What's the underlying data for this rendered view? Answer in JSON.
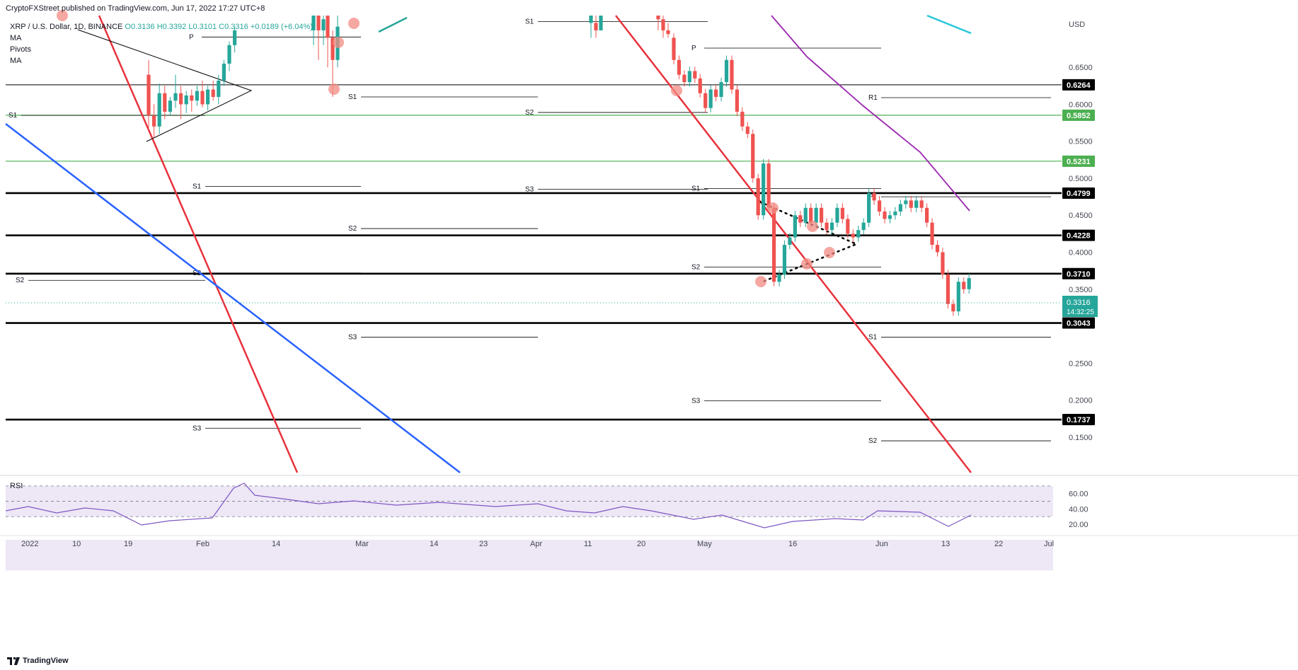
{
  "header": {
    "publisher": "CryptoFXStreet published on TradingView.com, Jun 17, 2022 17:27 UTC+8"
  },
  "legend": {
    "symbol": "XRP / U.S. Dollar, 1D, BINANCE",
    "open": "O0.3136",
    "high": "H0.3392",
    "low": "L0.3101",
    "close": "C0.3316",
    "change": "+0.0189 (+6.04%)",
    "studies": [
      "MA",
      "Pivots",
      "MA"
    ]
  },
  "footer": {
    "brand": "TradingView"
  },
  "colors": {
    "bull": "#26a69a",
    "bear": "#ef5350",
    "red_trend": "#e8323c",
    "blue_trend": "#2962ff",
    "purple_ma": "#9c27b0",
    "teal_ma": "#26c6da",
    "support_green": "#4caf50",
    "rsi_line": "#7e57c2",
    "rsi_band": "#ede7f6",
    "circle_marker": "#f28b82"
  },
  "chart_data": {
    "type": "candlestick",
    "symbol": "XRP / U.S. Dollar",
    "interval": "1D",
    "exchange": "BINANCE",
    "currency_label": "USD",
    "y_range": [
      0.102,
      0.72
    ],
    "y_ticks": [
      "0.6500",
      "0.6000",
      "0.5500",
      "0.5000",
      "0.4500",
      "0.4000",
      "0.3500",
      "0.2500",
      "0.2000",
      "0.1500"
    ],
    "x_ticks": [
      "2022",
      "10",
      "19",
      "Feb",
      "14",
      "Mar",
      "14",
      "23",
      "Apr",
      "11",
      "20",
      "May",
      "16",
      "Jun",
      "13",
      "22",
      "Jul"
    ],
    "last_price": {
      "value": 0.3316,
      "label": "0.3316",
      "countdown": "14:32:25"
    },
    "horizontal_levels": [
      {
        "value": 0.6264,
        "label": "0.6264",
        "style": "black-thin"
      },
      {
        "value": 0.5852,
        "label": "0.5852",
        "style": "green"
      },
      {
        "value": 0.5231,
        "label": "0.5231",
        "style": "green"
      },
      {
        "value": 0.4799,
        "label": "0.4799",
        "style": "black-bold"
      },
      {
        "value": 0.4228,
        "label": "0.4228",
        "style": "black-bold"
      },
      {
        "value": 0.371,
        "label": "0.3710",
        "style": "black-bold"
      },
      {
        "value": 0.3043,
        "label": "0.3043",
        "style": "black-bold"
      },
      {
        "value": 0.1737,
        "label": "0.1737",
        "style": "black-bold"
      }
    ],
    "pivot_labels": [
      {
        "label": "S1",
        "value": 0.585
      },
      {
        "label": "S2",
        "value": 0.362
      },
      {
        "label": "P",
        "value": 0.691
      },
      {
        "label": "S1",
        "value": 0.489
      },
      {
        "label": "S2",
        "value": 0.372
      },
      {
        "label": "S3",
        "value": 0.162
      },
      {
        "label": "S1",
        "value": 0.61
      },
      {
        "label": "S2",
        "value": 0.432
      },
      {
        "label": "S3",
        "value": 0.285
      },
      {
        "label": "S1",
        "value": 0.712
      },
      {
        "label": "S2",
        "value": 0.589
      },
      {
        "label": "S3",
        "value": 0.485
      },
      {
        "label": "P",
        "value": 0.676
      },
      {
        "label": "S1",
        "value": 0.486
      },
      {
        "label": "S2",
        "value": 0.38
      },
      {
        "label": "S3",
        "value": 0.199
      },
      {
        "label": "R1",
        "value": 0.609
      },
      {
        "label": "P",
        "value": 0.475
      },
      {
        "label": "S1",
        "value": 0.285
      },
      {
        "label": "S2",
        "value": 0.145
      }
    ],
    "candles": [
      {
        "o": 0.64,
        "h": 0.66,
        "l": 0.565,
        "c": 0.585
      },
      {
        "o": 0.585,
        "h": 0.6,
        "l": 0.555,
        "c": 0.57
      },
      {
        "o": 0.57,
        "h": 0.628,
        "l": 0.56,
        "c": 0.615
      },
      {
        "o": 0.615,
        "h": 0.625,
        "l": 0.58,
        "c": 0.59
      },
      {
        "o": 0.59,
        "h": 0.61,
        "l": 0.585,
        "c": 0.605
      },
      {
        "o": 0.605,
        "h": 0.64,
        "l": 0.595,
        "c": 0.615
      },
      {
        "o": 0.615,
        "h": 0.625,
        "l": 0.58,
        "c": 0.6
      },
      {
        "o": 0.6,
        "h": 0.618,
        "l": 0.588,
        "c": 0.612
      },
      {
        "o": 0.612,
        "h": 0.62,
        "l": 0.59,
        "c": 0.605
      },
      {
        "o": 0.605,
        "h": 0.625,
        "l": 0.598,
        "c": 0.618
      },
      {
        "o": 0.618,
        "h": 0.632,
        "l": 0.596,
        "c": 0.6
      },
      {
        "o": 0.6,
        "h": 0.625,
        "l": 0.592,
        "c": 0.62
      },
      {
        "o": 0.62,
        "h": 0.632,
        "l": 0.605,
        "c": 0.61
      },
      {
        "o": 0.61,
        "h": 0.64,
        "l": 0.6,
        "c": 0.632
      },
      {
        "o": 0.632,
        "h": 0.66,
        "l": 0.625,
        "c": 0.655
      },
      {
        "o": 0.655,
        "h": 0.685,
        "l": 0.645,
        "c": 0.68
      },
      {
        "o": 0.68,
        "h": 0.705,
        "l": 0.67,
        "c": 0.7
      }
    ],
    "rsi": {
      "ticks": [
        "60.00",
        "40.00",
        "20.00"
      ],
      "overbought": 70,
      "oversold": 30,
      "midline": 50
    }
  }
}
